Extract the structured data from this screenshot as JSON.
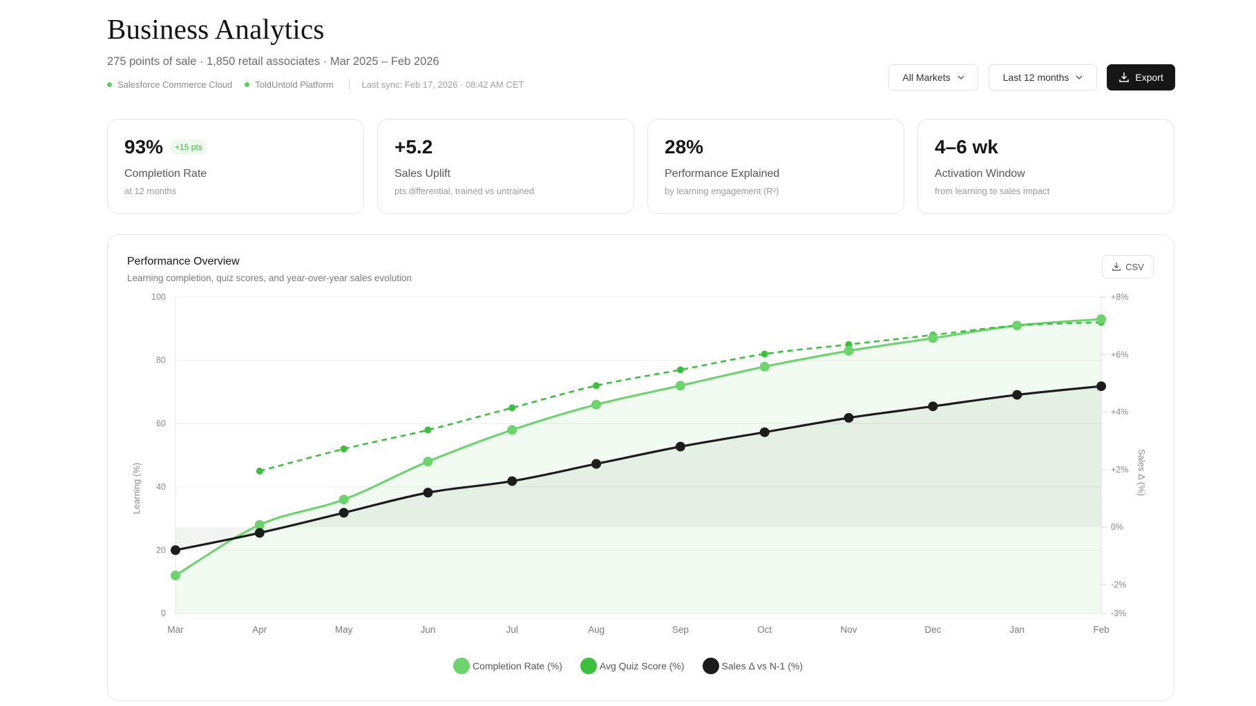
{
  "header": {
    "title": "Business Analytics",
    "subtitle": "275 points of sale · 1,850 retail associates · Mar 2025 – Feb 2026",
    "sources": [
      "Salesforce Commerce Cloud",
      "ToldUntold Platform"
    ],
    "last_sync": "Last sync: Feb 17, 2026 · 08:42 AM CET",
    "source_status_color": "#5ccf5c"
  },
  "toolbar": {
    "market_select": "All Markets",
    "period_select": "Last 12 months",
    "export_label": "Export"
  },
  "kpis": [
    {
      "value": "93%",
      "badge": "+15 pts",
      "label": "Completion Rate",
      "sub": "at 12 months"
    },
    {
      "value": "+5.2",
      "label": "Sales Uplift",
      "sub": "pts differential, trained vs untrained"
    },
    {
      "value": "28%",
      "label": "Performance Explained",
      "sub": "by learning engagement (R²)"
    },
    {
      "value": "4–6 wk",
      "label": "Activation Window",
      "sub": "from learning to sales impact"
    }
  ],
  "chart_section": {
    "title": "Performance Overview",
    "subtitle": "Learning completion, quiz scores, and year-over-year sales evolution",
    "csv_label": "CSV"
  },
  "chart_data": {
    "type": "line",
    "categories": [
      "Mar",
      "Apr",
      "May",
      "Jun",
      "Jul",
      "Aug",
      "Sep",
      "Oct",
      "Nov",
      "Dec",
      "Jan",
      "Feb"
    ],
    "ylabel": "Learning (%)",
    "ylabel_right": "Sales Δ (%)",
    "ylim": [
      0,
      100
    ],
    "yticks": [
      0,
      20,
      40,
      60,
      80,
      100
    ],
    "ylim_right": [
      -3,
      8
    ],
    "yticks_right": [
      -3,
      -2,
      0,
      2,
      4,
      6,
      8
    ],
    "yticks_right_labels": [
      "-3%",
      "-2%",
      "0%",
      "+2%",
      "+4%",
      "+6%",
      "+8%"
    ],
    "grid": true,
    "legend_position": "bottom",
    "series": [
      {
        "name": "Completion Rate (%)",
        "axis": "left",
        "style": "solid-area",
        "color": "#6dd46d",
        "values": [
          12,
          28,
          36,
          48,
          58,
          66,
          72,
          78,
          83,
          87,
          91,
          93
        ]
      },
      {
        "name": "Avg Quiz Score (%)",
        "axis": "left",
        "style": "dashed",
        "color": "#3cbf3c",
        "values": [
          null,
          45,
          52,
          58,
          65,
          72,
          77,
          82,
          85,
          88,
          91,
          92
        ]
      },
      {
        "name": "Sales Δ vs N-1 (%)",
        "axis": "right",
        "style": "solid-area",
        "color": "#1c1c1c",
        "values": [
          -0.8,
          -0.2,
          0.5,
          1.2,
          1.6,
          2.2,
          2.8,
          3.3,
          3.8,
          4.2,
          4.6,
          4.9
        ]
      }
    ]
  }
}
